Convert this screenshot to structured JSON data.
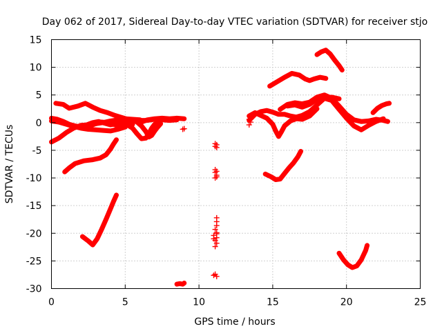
{
  "chart_data": {
    "type": "scatter",
    "title": "Day 062 of 2017, Sidereal Day-to-day VTEC variation (SDTVAR) for receiver stjo",
    "xlabel": "GPS time / hours",
    "ylabel": "SDTVAR / TECUs",
    "xlim": [
      0,
      25
    ],
    "ylim": [
      -30,
      15
    ],
    "xticks": [
      0,
      5,
      10,
      15,
      20,
      25
    ],
    "yticks": [
      -30,
      -25,
      -20,
      -15,
      -10,
      -5,
      0,
      5,
      10,
      15
    ],
    "xtick_labels": [
      "0",
      "5",
      "10",
      "15",
      "20",
      "25"
    ],
    "ytick_labels": [
      "-30",
      "-25",
      "-20",
      "-15",
      "-10",
      "-5",
      "0",
      "5",
      "10",
      "15"
    ],
    "grid": true,
    "legend": "none",
    "marker": "plus",
    "color": "#ff0000",
    "tracks": [
      [
        [
          0.0,
          -3.5
        ],
        [
          0.5,
          -2.8
        ],
        [
          1.0,
          -1.8
        ],
        [
          1.5,
          -1.0
        ],
        [
          2.0,
          -0.5
        ],
        [
          2.5,
          -0.4
        ],
        [
          3.0,
          -0.2
        ],
        [
          3.5,
          0.0
        ],
        [
          4.0,
          0.3
        ],
        [
          4.5,
          0.5
        ],
        [
          5.0,
          0.7
        ],
        [
          5.5,
          0.6
        ],
        [
          6.0,
          0.5
        ]
      ],
      [
        [
          0.0,
          0.3
        ],
        [
          0.5,
          0.1
        ],
        [
          1.0,
          -0.3
        ],
        [
          1.5,
          -0.7
        ],
        [
          2.0,
          -1.0
        ],
        [
          2.5,
          -1.2
        ],
        [
          3.0,
          -1.3
        ],
        [
          3.5,
          -1.4
        ],
        [
          4.0,
          -1.5
        ],
        [
          4.5,
          -1.2
        ],
        [
          5.0,
          -0.8
        ]
      ],
      [
        [
          0.3,
          3.5
        ],
        [
          0.8,
          3.3
        ],
        [
          1.2,
          2.6
        ],
        [
          1.8,
          3.0
        ],
        [
          2.3,
          3.5
        ],
        [
          2.8,
          2.8
        ],
        [
          3.3,
          2.2
        ],
        [
          3.8,
          1.8
        ],
        [
          4.3,
          1.3
        ],
        [
          4.8,
          0.9
        ],
        [
          5.3,
          0.5
        ]
      ],
      [
        [
          0.0,
          0.8
        ],
        [
          0.4,
          0.6
        ],
        [
          0.8,
          0.2
        ],
        [
          1.2,
          -0.3
        ],
        [
          1.6,
          -0.6
        ],
        [
          2.0,
          -0.8
        ],
        [
          2.4,
          -0.4
        ],
        [
          2.8,
          0.0
        ],
        [
          3.2,
          0.2
        ],
        [
          3.6,
          -0.1
        ],
        [
          4.0,
          -0.4
        ],
        [
          4.4,
          -0.2
        ],
        [
          4.8,
          0.0
        ],
        [
          5.2,
          0.1
        ]
      ],
      [
        [
          2.2,
          -1.0
        ],
        [
          2.6,
          -0.6
        ],
        [
          3.0,
          -0.2
        ],
        [
          3.4,
          0.1
        ],
        [
          3.8,
          0.0
        ],
        [
          4.2,
          -0.3
        ],
        [
          4.6,
          -0.7
        ],
        [
          5.0,
          -0.5
        ],
        [
          5.5,
          -0.3
        ]
      ],
      [
        [
          0.9,
          -8.9
        ],
        [
          1.2,
          -8.2
        ],
        [
          1.6,
          -7.4
        ],
        [
          2.2,
          -6.9
        ],
        [
          2.8,
          -6.7
        ],
        [
          3.3,
          -6.4
        ],
        [
          3.7,
          -5.8
        ],
        [
          4.0,
          -4.8
        ],
        [
          4.2,
          -3.9
        ],
        [
          4.4,
          -3.1
        ]
      ],
      [
        [
          4.8,
          0.4
        ],
        [
          5.2,
          0.6
        ],
        [
          5.6,
          0.3
        ],
        [
          6.0,
          0.0
        ],
        [
          6.5,
          0.5
        ],
        [
          7.0,
          0.7
        ],
        [
          7.5,
          0.8
        ],
        [
          8.0,
          0.7
        ],
        [
          8.5,
          0.8
        ],
        [
          9.0,
          0.7
        ]
      ],
      [
        [
          4.8,
          -0.3
        ],
        [
          5.2,
          -0.1
        ],
        [
          5.6,
          0.2
        ],
        [
          6.0,
          0.4
        ],
        [
          6.5,
          0.4
        ],
        [
          7.0,
          0.6
        ],
        [
          7.5,
          0.5
        ],
        [
          8.0,
          0.4
        ],
        [
          8.5,
          0.5
        ]
      ],
      [
        [
          5.2,
          -0.5
        ],
        [
          5.5,
          -1.0
        ],
        [
          5.8,
          -2.0
        ],
        [
          6.1,
          -2.9
        ],
        [
          6.4,
          -2.8
        ],
        [
          6.6,
          -2.0
        ],
        [
          6.8,
          -1.0
        ],
        [
          7.0,
          -0.3
        ],
        [
          7.2,
          0.0
        ]
      ],
      [
        [
          5.8,
          0.1
        ],
        [
          6.1,
          -0.6
        ],
        [
          6.4,
          -1.6
        ],
        [
          6.6,
          -2.6
        ],
        [
          6.8,
          -2.3
        ],
        [
          7.0,
          -1.5
        ],
        [
          7.2,
          -0.8
        ],
        [
          7.4,
          -0.2
        ]
      ],
      [
        [
          2.1,
          -20.6
        ],
        [
          2.5,
          -21.4
        ],
        [
          2.8,
          -22.1
        ],
        [
          3.1,
          -21.0
        ],
        [
          3.4,
          -19.3
        ],
        [
          3.7,
          -17.5
        ],
        [
          4.0,
          -15.6
        ],
        [
          4.2,
          -14.3
        ],
        [
          4.4,
          -13.1
        ]
      ],
      [
        [
          8.5,
          -29.2
        ],
        [
          8.7,
          -29.1
        ],
        [
          8.9,
          -29.2
        ],
        [
          9.0,
          -29.0
        ]
      ]
    ],
    "points": [
      [
        8.9,
        -1.2
      ],
      [
        9.0,
        -1.1
      ],
      [
        11.1,
        -4.3
      ],
      [
        11.2,
        -4.0
      ],
      [
        11.1,
        -3.8
      ],
      [
        11.2,
        -4.5
      ],
      [
        11.1,
        -8.5
      ],
      [
        11.1,
        -9.0
      ],
      [
        11.2,
        -9.5
      ],
      [
        11.1,
        -10.0
      ],
      [
        11.2,
        -8.8
      ],
      [
        11.2,
        -9.8
      ],
      [
        11.2,
        -17.2
      ],
      [
        11.2,
        -17.9
      ],
      [
        11.2,
        -18.6
      ],
      [
        11.1,
        -19.3
      ],
      [
        11.2,
        -19.9
      ],
      [
        11.0,
        -20.4
      ],
      [
        11.2,
        -20.8
      ],
      [
        11.1,
        -21.3
      ],
      [
        11.2,
        -21.8
      ],
      [
        11.1,
        -22.4
      ],
      [
        11.2,
        -20.1
      ],
      [
        11.0,
        -21.0
      ],
      [
        11.1,
        -27.4
      ],
      [
        11.2,
        -27.8
      ],
      [
        11.0,
        -27.6
      ]
    ],
    "tracks_right": [
      [
        [
          13.4,
          0.4
        ],
        [
          13.8,
          1.5
        ],
        [
          14.2,
          2.0
        ],
        [
          14.6,
          2.2
        ],
        [
          15.0,
          1.9
        ],
        [
          15.4,
          1.5
        ],
        [
          15.8,
          1.5
        ],
        [
          16.2,
          1.2
        ],
        [
          16.6,
          1.0
        ],
        [
          17.0,
          1.3
        ],
        [
          17.5,
          2.0
        ],
        [
          18.0,
          3.2
        ],
        [
          18.5,
          4.4
        ],
        [
          19.0,
          4.6
        ],
        [
          19.5,
          4.3
        ]
      ],
      [
        [
          13.4,
          1.2
        ],
        [
          13.8,
          1.8
        ],
        [
          14.2,
          1.3
        ],
        [
          14.6,
          0.8
        ],
        [
          15.0,
          -0.3
        ],
        [
          15.2,
          -1.5
        ],
        [
          15.4,
          -2.5
        ],
        [
          15.6,
          -1.6
        ],
        [
          15.8,
          -0.6
        ],
        [
          16.2,
          0.3
        ],
        [
          16.6,
          0.7
        ],
        [
          17.0,
          0.6
        ],
        [
          17.5,
          1.2
        ],
        [
          18.0,
          2.5
        ]
      ],
      [
        [
          14.8,
          6.6
        ],
        [
          15.3,
          7.4
        ],
        [
          15.8,
          8.2
        ],
        [
          16.3,
          8.9
        ],
        [
          16.8,
          8.6
        ],
        [
          17.2,
          7.9
        ],
        [
          17.5,
          7.6
        ],
        [
          17.8,
          7.9
        ],
        [
          18.2,
          8.2
        ],
        [
          18.6,
          8.0
        ]
      ],
      [
        [
          15.5,
          2.4
        ],
        [
          16.0,
          3.3
        ],
        [
          16.5,
          3.6
        ],
        [
          17.0,
          3.4
        ],
        [
          17.5,
          3.7
        ],
        [
          18.0,
          4.6
        ],
        [
          18.5,
          5.0
        ],
        [
          19.0,
          4.4
        ],
        [
          19.5,
          3.0
        ],
        [
          20.0,
          1.5
        ],
        [
          20.5,
          0.5
        ],
        [
          21.0,
          0.2
        ],
        [
          21.5,
          0.3
        ],
        [
          22.0,
          0.6
        ],
        [
          22.5,
          0.4
        ],
        [
          22.8,
          0.2
        ]
      ],
      [
        [
          16.0,
          3.0
        ],
        [
          16.5,
          3.2
        ],
        [
          17.0,
          2.8
        ],
        [
          17.5,
          3.3
        ],
        [
          18.0,
          4.2
        ],
        [
          18.5,
          4.4
        ],
        [
          19.0,
          4.0
        ],
        [
          19.5,
          2.4
        ],
        [
          20.0,
          0.8
        ],
        [
          20.5,
          -0.6
        ],
        [
          21.0,
          -1.3
        ],
        [
          21.5,
          -0.5
        ],
        [
          22.0,
          0.2
        ],
        [
          22.5,
          0.7
        ]
      ],
      [
        [
          14.5,
          -9.3
        ],
        [
          14.9,
          -9.8
        ],
        [
          15.2,
          -10.3
        ],
        [
          15.5,
          -10.2
        ],
        [
          15.8,
          -9.2
        ],
        [
          16.1,
          -8.2
        ],
        [
          16.4,
          -7.3
        ],
        [
          16.7,
          -6.2
        ],
        [
          16.9,
          -5.2
        ]
      ],
      [
        [
          18.0,
          12.3
        ],
        [
          18.3,
          12.8
        ],
        [
          18.6,
          13.1
        ],
        [
          18.9,
          12.4
        ],
        [
          19.2,
          11.3
        ],
        [
          19.5,
          10.3
        ],
        [
          19.7,
          9.5
        ]
      ],
      [
        [
          21.8,
          1.8
        ],
        [
          22.1,
          2.6
        ],
        [
          22.4,
          3.1
        ],
        [
          22.7,
          3.4
        ],
        [
          22.9,
          3.5
        ]
      ],
      [
        [
          19.5,
          -23.6
        ],
        [
          19.8,
          -24.8
        ],
        [
          20.1,
          -25.7
        ],
        [
          20.4,
          -26.2
        ],
        [
          20.7,
          -25.9
        ],
        [
          21.0,
          -24.8
        ],
        [
          21.3,
          -23.1
        ],
        [
          21.4,
          -22.2
        ]
      ]
    ],
    "points_right": [
      [
        13.4,
        -0.4
      ],
      [
        13.5,
        0.1
      ],
      [
        13.4,
        0.6
      ]
    ]
  }
}
